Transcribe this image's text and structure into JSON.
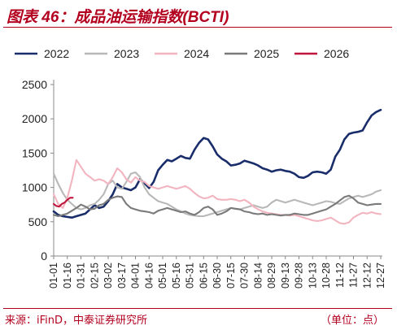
{
  "figure": {
    "title": "图表 46：成品油运输指数(BCTI)",
    "source": "来源：iFinD，中泰证券研究所",
    "unit": "（单位：点）"
  },
  "chart_data": {
    "type": "line",
    "title": "图表 46：成品油运输指数(BCTI)",
    "xlabel": "",
    "ylabel": "",
    "ylim": [
      0,
      2500
    ],
    "yticks": [
      0,
      500,
      1000,
      1500,
      2000,
      2500
    ],
    "x_tick_labels": [
      "01-01",
      "01-16",
      "01-31",
      "02-15",
      "03-02",
      "03-17",
      "04-01",
      "04-16",
      "05-01",
      "05-16",
      "05-31",
      "06-15",
      "06-30",
      "07-15",
      "07-30",
      "08-14",
      "08-29",
      "09-13",
      "09-28",
      "10-13",
      "10-28",
      "11-12",
      "11-27",
      "12-12",
      "12-27"
    ],
    "x_unit": "day of year (MM-DD)",
    "grid": false,
    "legend_position": "top",
    "series": [
      {
        "name": "2022",
        "color": "#1a2d6b",
        "x": [
          "01-01",
          "01-06",
          "01-11",
          "01-16",
          "01-21",
          "01-26",
          "01-31",
          "02-05",
          "02-10",
          "02-15",
          "02-20",
          "02-25",
          "03-02",
          "03-07",
          "03-12",
          "03-17",
          "03-22",
          "03-27",
          "04-01",
          "04-06",
          "04-11",
          "04-16",
          "04-21",
          "04-26",
          "05-01",
          "05-06",
          "05-11",
          "05-16",
          "05-21",
          "05-26",
          "05-31",
          "06-05",
          "06-10",
          "06-15",
          "06-20",
          "06-25",
          "06-30",
          "07-05",
          "07-10",
          "07-15",
          "07-20",
          "07-25",
          "07-30",
          "08-04",
          "08-09",
          "08-14",
          "08-19",
          "08-24",
          "08-29",
          "09-03",
          "09-08",
          "09-13",
          "09-18",
          "09-23",
          "09-28",
          "10-03",
          "10-08",
          "10-13",
          "10-18",
          "10-23",
          "10-28",
          "11-02",
          "11-07",
          "11-12",
          "11-17",
          "11-22",
          "11-27",
          "12-02",
          "12-07",
          "12-12",
          "12-17",
          "12-22",
          "12-27"
        ],
        "y": [
          650,
          600,
          580,
          570,
          560,
          580,
          600,
          620,
          680,
          740,
          700,
          720,
          800,
          900,
          1050,
          1000,
          980,
          960,
          1000,
          1120,
          1060,
          990,
          1080,
          1250,
          1330,
          1400,
          1380,
          1420,
          1460,
          1430,
          1420,
          1550,
          1650,
          1720,
          1700,
          1600,
          1480,
          1420,
          1380,
          1320,
          1330,
          1350,
          1390,
          1370,
          1350,
          1320,
          1280,
          1260,
          1230,
          1250,
          1260,
          1240,
          1230,
          1200,
          1150,
          1140,
          1170,
          1220,
          1230,
          1220,
          1200,
          1260,
          1450,
          1550,
          1700,
          1780,
          1800,
          1810,
          1830,
          1950,
          2050,
          2100,
          2130
        ]
      },
      {
        "name": "2023",
        "color": "#b8b8b8",
        "x": [
          "01-01",
          "01-06",
          "01-11",
          "01-16",
          "01-21",
          "01-26",
          "01-31",
          "02-05",
          "02-10",
          "02-15",
          "02-20",
          "02-25",
          "03-02",
          "03-07",
          "03-12",
          "03-17",
          "03-22",
          "03-27",
          "04-01",
          "04-06",
          "04-11",
          "04-16",
          "04-21",
          "04-26",
          "05-01",
          "05-06",
          "05-11",
          "05-16",
          "05-21",
          "05-26",
          "05-31",
          "06-05",
          "06-10",
          "06-15",
          "06-20",
          "06-25",
          "06-30",
          "07-05",
          "07-10",
          "07-15",
          "07-20",
          "07-25",
          "07-30",
          "08-04",
          "08-09",
          "08-14",
          "08-19",
          "08-24",
          "08-29",
          "09-03",
          "09-08",
          "09-13",
          "09-18",
          "09-23",
          "09-28",
          "10-03",
          "10-08",
          "10-13",
          "10-18",
          "10-23",
          "10-28",
          "11-02",
          "11-07",
          "11-12",
          "11-17",
          "11-22",
          "11-27",
          "12-02",
          "12-07",
          "12-12",
          "12-17",
          "12-22",
          "12-27"
        ],
        "y": [
          1200,
          1050,
          920,
          820,
          760,
          700,
          680,
          700,
          740,
          760,
          820,
          900,
          1050,
          1100,
          1000,
          980,
          1080,
          1200,
          1220,
          1150,
          1000,
          900,
          850,
          800,
          780,
          760,
          720,
          680,
          650,
          620,
          600,
          590,
          580,
          580,
          600,
          620,
          640,
          660,
          680,
          700,
          690,
          680,
          700,
          720,
          740,
          720,
          700,
          720,
          780,
          820,
          800,
          780,
          800,
          820,
          800,
          780,
          760,
          740,
          760,
          780,
          800,
          790,
          770,
          760,
          800,
          840,
          860,
          880,
          860,
          880,
          900,
          940,
          960
        ]
      },
      {
        "name": "2024",
        "color": "#f2b5c0",
        "x": [
          "01-01",
          "01-06",
          "01-11",
          "01-16",
          "01-21",
          "01-26",
          "01-31",
          "02-05",
          "02-10",
          "02-15",
          "02-20",
          "02-25",
          "03-02",
          "03-07",
          "03-12",
          "03-17",
          "03-22",
          "03-27",
          "04-01",
          "04-06",
          "04-11",
          "04-16",
          "04-21",
          "04-26",
          "05-01",
          "05-06",
          "05-11",
          "05-16",
          "05-21",
          "05-26",
          "05-31",
          "06-05",
          "06-10",
          "06-15",
          "06-20",
          "06-25",
          "06-30",
          "07-05",
          "07-10",
          "07-15",
          "07-20",
          "07-25",
          "07-30",
          "08-04",
          "08-09",
          "08-14",
          "08-19",
          "08-24",
          "08-29",
          "09-03",
          "09-08",
          "09-13",
          "09-18",
          "09-23",
          "09-28",
          "10-03",
          "10-08",
          "10-13",
          "10-18",
          "10-23",
          "10-28",
          "11-02",
          "11-07",
          "11-12",
          "11-17",
          "11-22",
          "11-27",
          "12-02",
          "12-07",
          "12-12",
          "12-17",
          "12-22",
          "12-27"
        ],
        "y": [
          900,
          760,
          700,
          850,
          1100,
          1400,
          1300,
          1200,
          1150,
          1100,
          1120,
          1100,
          1050,
          1150,
          1280,
          1220,
          1120,
          1070,
          1150,
          1100,
          1080,
          1020,
          1000,
          980,
          1000,
          1020,
          1000,
          980,
          1000,
          1020,
          980,
          920,
          870,
          840,
          850,
          880,
          830,
          820,
          820,
          830,
          820,
          800,
          820,
          780,
          720,
          680,
          650,
          630,
          620,
          610,
          600,
          600,
          590,
          600,
          580,
          560,
          540,
          520,
          510,
          520,
          540,
          560,
          520,
          480,
          470,
          490,
          560,
          600,
          630,
          620,
          640,
          620,
          610
        ]
      },
      {
        "name": "2025",
        "color": "#7a7a7a",
        "x": [
          "01-01",
          "01-06",
          "01-11",
          "01-16",
          "01-21",
          "01-26",
          "01-31",
          "02-05",
          "02-10",
          "02-15",
          "02-20",
          "02-25",
          "03-02",
          "03-07",
          "03-12",
          "03-17",
          "03-22",
          "03-27",
          "04-01",
          "04-06",
          "04-11",
          "04-16",
          "04-21",
          "04-26",
          "05-01",
          "05-06",
          "05-11",
          "05-16",
          "05-21",
          "05-26",
          "05-31",
          "06-05",
          "06-10",
          "06-15",
          "06-20",
          "06-25",
          "06-30",
          "07-05",
          "07-10",
          "07-15",
          "07-20",
          "07-25",
          "07-30",
          "08-04",
          "08-09",
          "08-14",
          "08-19",
          "08-24",
          "08-29",
          "09-03",
          "09-08",
          "09-13",
          "09-18",
          "09-23",
          "09-28",
          "10-03",
          "10-08",
          "10-13",
          "10-18",
          "10-23",
          "10-28",
          "11-02",
          "11-07",
          "11-12",
          "11-17",
          "11-22",
          "11-27",
          "12-02",
          "12-07",
          "12-12",
          "12-17",
          "12-22",
          "12-27"
        ],
        "y": [
          600,
          580,
          600,
          620,
          660,
          700,
          750,
          720,
          680,
          690,
          740,
          760,
          820,
          850,
          870,
          860,
          760,
          700,
          680,
          660,
          650,
          640,
          620,
          660,
          680,
          700,
          680,
          660,
          640,
          650,
          620,
          600,
          640,
          700,
          720,
          680,
          600,
          620,
          650,
          700,
          690,
          680,
          650,
          640,
          620,
          610,
          620,
          600,
          610,
          600,
          590,
          600,
          600,
          620,
          610,
          600,
          600,
          620,
          640,
          660,
          680,
          720,
          760,
          810,
          860,
          880,
          840,
          780,
          760,
          740,
          750,
          760,
          760
        ]
      },
      {
        "name": "2026",
        "color": "#c0143c",
        "x": [
          "01-01",
          "01-04",
          "01-07",
          "01-10",
          "01-13",
          "01-16",
          "01-19",
          "01-22"
        ],
        "y": [
          760,
          730,
          720,
          760,
          780,
          820,
          850,
          850
        ]
      }
    ]
  }
}
